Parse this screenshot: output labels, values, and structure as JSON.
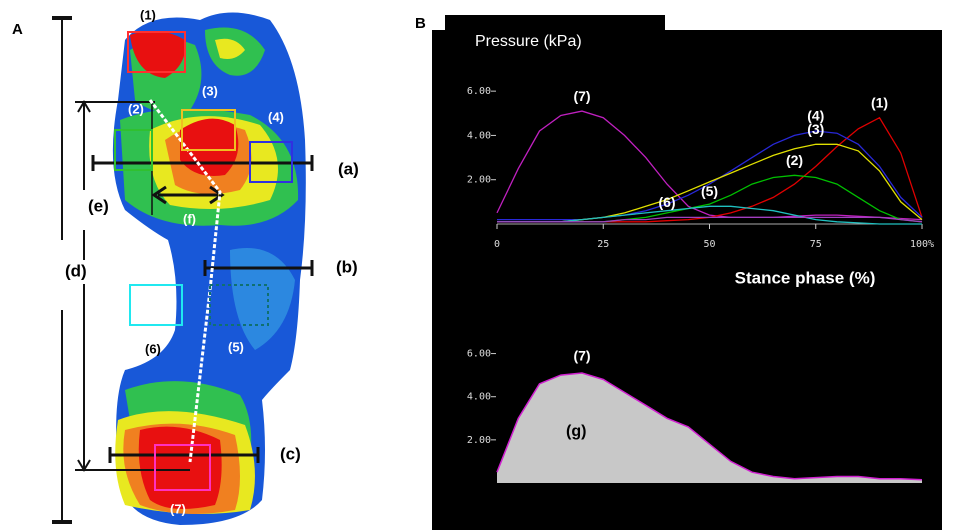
{
  "figure": {
    "panel_a": {
      "label": "A",
      "annotations": [
        "(1)",
        "(2)",
        "(3)",
        "(4)",
        "(a)",
        "(e)",
        "(f)",
        "(d)",
        "(b)",
        "(6)",
        "(5)",
        "(c)",
        "(7)"
      ]
    },
    "panel_b": {
      "label": "B",
      "header": "Pressure  (kPa)"
    }
  },
  "chart_data": [
    {
      "type": "line",
      "x_label": "Stance phase (%)",
      "x": [
        0,
        5,
        10,
        15,
        20,
        25,
        30,
        35,
        40,
        45,
        50,
        55,
        60,
        65,
        70,
        75,
        80,
        85,
        90,
        95,
        100
      ],
      "xlim": [
        0,
        100
      ],
      "xticks": [
        0,
        25,
        50,
        75,
        {
          "value": 100,
          "label": "100%"
        }
      ],
      "ylim": [
        0,
        7
      ],
      "yticks": [
        {
          "value": 2,
          "label": "2.00"
        },
        {
          "value": 4,
          "label": "4.00"
        },
        {
          "value": 6,
          "label": "6.00"
        }
      ],
      "series": [
        {
          "name": "(7)",
          "color": "#c020c0",
          "values": [
            0.5,
            2.5,
            4.2,
            4.9,
            5.1,
            4.8,
            4.0,
            3.0,
            1.8,
            0.8,
            0.4,
            0.3,
            0.3,
            0.3,
            0.35,
            0.4,
            0.4,
            0.35,
            0.3,
            0.25,
            0.2
          ]
        },
        {
          "name": "(1)",
          "color": "#e00000",
          "values": [
            0.1,
            0.1,
            0.1,
            0.1,
            0.1,
            0.1,
            0.1,
            0.1,
            0.15,
            0.2,
            0.3,
            0.5,
            0.8,
            1.2,
            1.8,
            2.6,
            3.5,
            4.3,
            4.8,
            3.2,
            0.3
          ]
        },
        {
          "name": "(4)",
          "color": "#2828d8",
          "values": [
            0.2,
            0.2,
            0.2,
            0.2,
            0.2,
            0.3,
            0.4,
            0.6,
            0.9,
            1.3,
            1.8,
            2.4,
            3.0,
            3.6,
            4.0,
            4.2,
            4.1,
            3.6,
            2.6,
            1.2,
            0.3
          ]
        },
        {
          "name": "(3)",
          "color": "#e0e000",
          "values": [
            0.1,
            0.1,
            0.1,
            0.1,
            0.2,
            0.3,
            0.5,
            0.8,
            1.1,
            1.5,
            1.9,
            2.3,
            2.7,
            3.1,
            3.4,
            3.6,
            3.6,
            3.3,
            2.4,
            1.0,
            0.2
          ]
        },
        {
          "name": "(2)",
          "color": "#00c000",
          "values": [
            0.1,
            0.1,
            0.1,
            0.1,
            0.1,
            0.1,
            0.2,
            0.3,
            0.5,
            0.7,
            0.9,
            1.3,
            1.8,
            2.1,
            2.2,
            2.1,
            1.8,
            1.2,
            0.6,
            0.2,
            0.1
          ]
        },
        {
          "name": "(5)",
          "color": "#20c0c0",
          "values": [
            0.1,
            0.1,
            0.1,
            0.1,
            0.2,
            0.3,
            0.4,
            0.5,
            0.6,
            0.7,
            0.8,
            0.8,
            0.7,
            0.6,
            0.4,
            0.2,
            0.1,
            0.05,
            0,
            0,
            0
          ]
        },
        {
          "name": "(6)",
          "color": "#a040c0",
          "values": [
            0.1,
            0.1,
            0.1,
            0.1,
            0.1,
            0.1,
            0.2,
            0.2,
            0.3,
            0.3,
            0.3,
            0.3,
            0.3,
            0.3,
            0.3,
            0.3,
            0.3,
            0.3,
            0.3,
            0.2,
            0.1
          ]
        }
      ]
    },
    {
      "type": "area",
      "x": [
        0,
        5,
        10,
        15,
        20,
        25,
        30,
        35,
        40,
        45,
        50,
        55,
        60,
        65,
        70,
        75,
        80,
        85,
        90,
        95,
        100
      ],
      "xlim": [
        0,
        100
      ],
      "ylim": [
        0,
        7
      ],
      "yticks": [
        {
          "value": 2,
          "label": "2.00"
        },
        {
          "value": 4,
          "label": "4.00"
        },
        {
          "value": 6,
          "label": "6.00"
        }
      ],
      "annotations": [
        "(7)"
      ],
      "series": [
        {
          "name": "(g)",
          "color": "#c8c8c8",
          "line_color": "#d020d0",
          "values": [
            0.5,
            3.0,
            4.6,
            5.0,
            5.1,
            4.8,
            4.2,
            3.6,
            3.0,
            2.6,
            1.8,
            1.0,
            0.5,
            0.3,
            0.2,
            0.25,
            0.3,
            0.3,
            0.2,
            0.2,
            0.15
          ]
        }
      ]
    }
  ]
}
